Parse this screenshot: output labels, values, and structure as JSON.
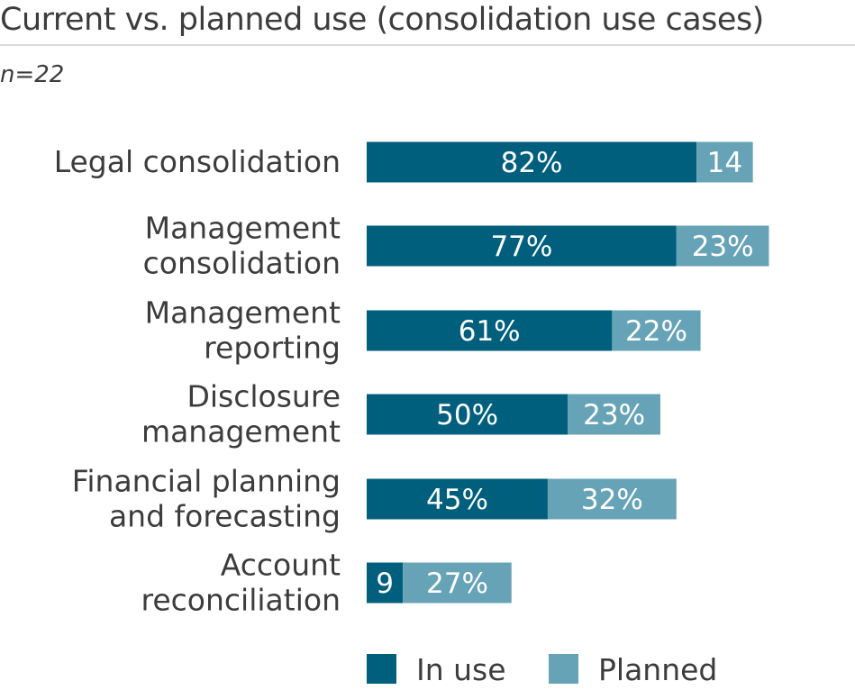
{
  "chart_data": {
    "type": "bar",
    "orientation": "horizontal",
    "stacked": true,
    "title": "Current vs. planned use (consolidation use cases)",
    "subtitle": "n=22",
    "categories": [
      [
        "Legal consolidation"
      ],
      [
        "Management",
        "consolidation"
      ],
      [
        "Management",
        "reporting"
      ],
      [
        "Disclosure",
        "management"
      ],
      [
        "Financial planning",
        "and forecasting"
      ],
      [
        "Account",
        "reconciliation"
      ]
    ],
    "series": [
      {
        "name": "In use",
        "color": "#005f7d",
        "values": [
          82,
          77,
          61,
          50,
          45,
          9
        ],
        "labels": [
          "82%",
          "77%",
          "61%",
          "50%",
          "45%",
          "9"
        ]
      },
      {
        "name": "Planned",
        "color": "#67a3b6",
        "values": [
          14,
          23,
          22,
          23,
          32,
          27
        ],
        "labels": [
          "14",
          "23%",
          "22%",
          "23%",
          "32%",
          "27%"
        ]
      }
    ],
    "xlim": [
      0,
      100
    ],
    "grid": false,
    "legend": "bottom"
  }
}
